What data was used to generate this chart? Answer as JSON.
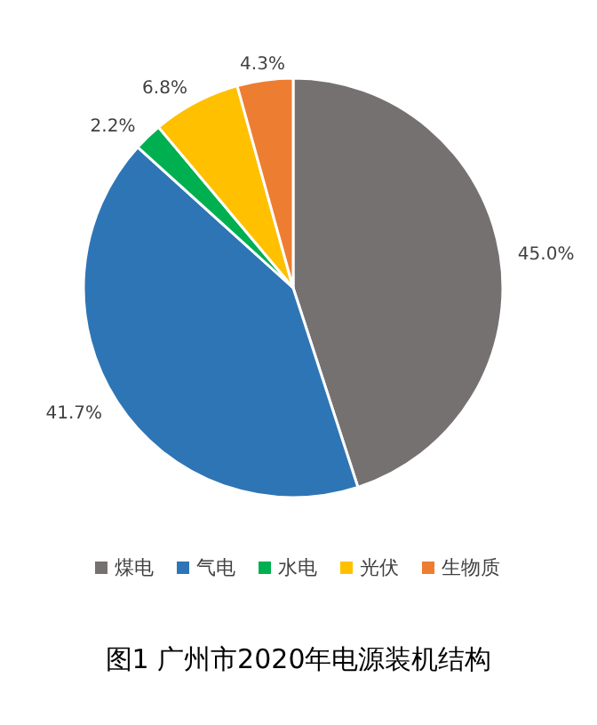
{
  "chart_data": {
    "type": "pie",
    "title": "图1 广州市2020年电源装机结构",
    "categories": [
      "煤电",
      "气电",
      "水电",
      "光伏",
      "生物质"
    ],
    "values": [
      45.0,
      41.7,
      2.2,
      6.8,
      4.3
    ],
    "value_labels": [
      "45.0%",
      "41.7%",
      "2.2%",
      "6.8%",
      "4.3%"
    ],
    "colors": [
      "#767171",
      "#2e75b6",
      "#00b050",
      "#ffc000",
      "#ed7d31"
    ],
    "legend": "bottom"
  }
}
